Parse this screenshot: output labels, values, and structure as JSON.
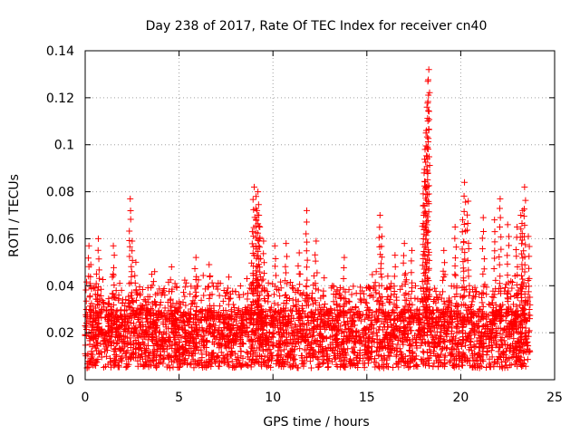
{
  "chart_data": {
    "type": "scatter",
    "title": "Day 238 of 2017, Rate Of TEC Index for receiver cn40",
    "xlabel": "GPS time / hours",
    "ylabel": "ROTI / TECUs",
    "xlim": [
      0,
      25
    ],
    "ylim": [
      0,
      0.14
    ],
    "xticks": [
      0,
      5,
      10,
      15,
      20,
      25
    ],
    "yticks": [
      0,
      0.02,
      0.04,
      0.06,
      0.08,
      0.1,
      0.12,
      0.14
    ],
    "xtick_labels": [
      "0",
      "5",
      "10",
      "15",
      "20",
      "25"
    ],
    "ytick_labels": [
      "0",
      "0.02",
      "0.04",
      "0.06",
      "0.08",
      "0.1",
      "0.12",
      "0.14"
    ],
    "grid": true,
    "marker": "+",
    "color": "#ff0000",
    "data_x_range": [
      0,
      23.7
    ],
    "baseline_band": [
      0.005,
      0.03
    ],
    "series": [
      {
        "name": "cn40",
        "x": [
          0.2,
          0.3,
          0.6,
          0.7,
          1.5,
          2.4,
          2.5,
          2.7,
          3.7,
          4.6,
          5.9,
          6.6,
          7.2,
          8.9,
          9.0,
          9.1,
          9.15,
          9.2,
          9.25,
          9.3,
          9.5,
          10.1,
          10.7,
          11.4,
          11.8,
          12.3,
          13.8,
          15.5,
          15.7,
          15.8,
          16.5,
          17.0,
          17.4,
          18.0,
          18.05,
          18.1,
          18.15,
          18.2,
          18.25,
          18.3,
          19.1,
          19.7,
          20.1,
          20.2,
          20.4,
          21.2,
          21.8,
          22.1,
          22.5,
          23.0,
          23.2,
          23.3,
          23.4,
          23.6
        ],
        "y": [
          0.057,
          0.049,
          0.045,
          0.06,
          0.057,
          0.077,
          0.059,
          0.05,
          0.046,
          0.048,
          0.052,
          0.049,
          0.041,
          0.063,
          0.082,
          0.078,
          0.072,
          0.08,
          0.07,
          0.065,
          0.059,
          0.057,
          0.058,
          0.054,
          0.072,
          0.059,
          0.052,
          0.046,
          0.07,
          0.061,
          0.053,
          0.058,
          0.055,
          0.074,
          0.088,
          0.098,
          0.105,
          0.116,
          0.127,
          0.132,
          0.055,
          0.065,
          0.068,
          0.084,
          0.076,
          0.069,
          0.068,
          0.077,
          0.066,
          0.065,
          0.07,
          0.072,
          0.082,
          0.061
        ]
      }
    ]
  }
}
